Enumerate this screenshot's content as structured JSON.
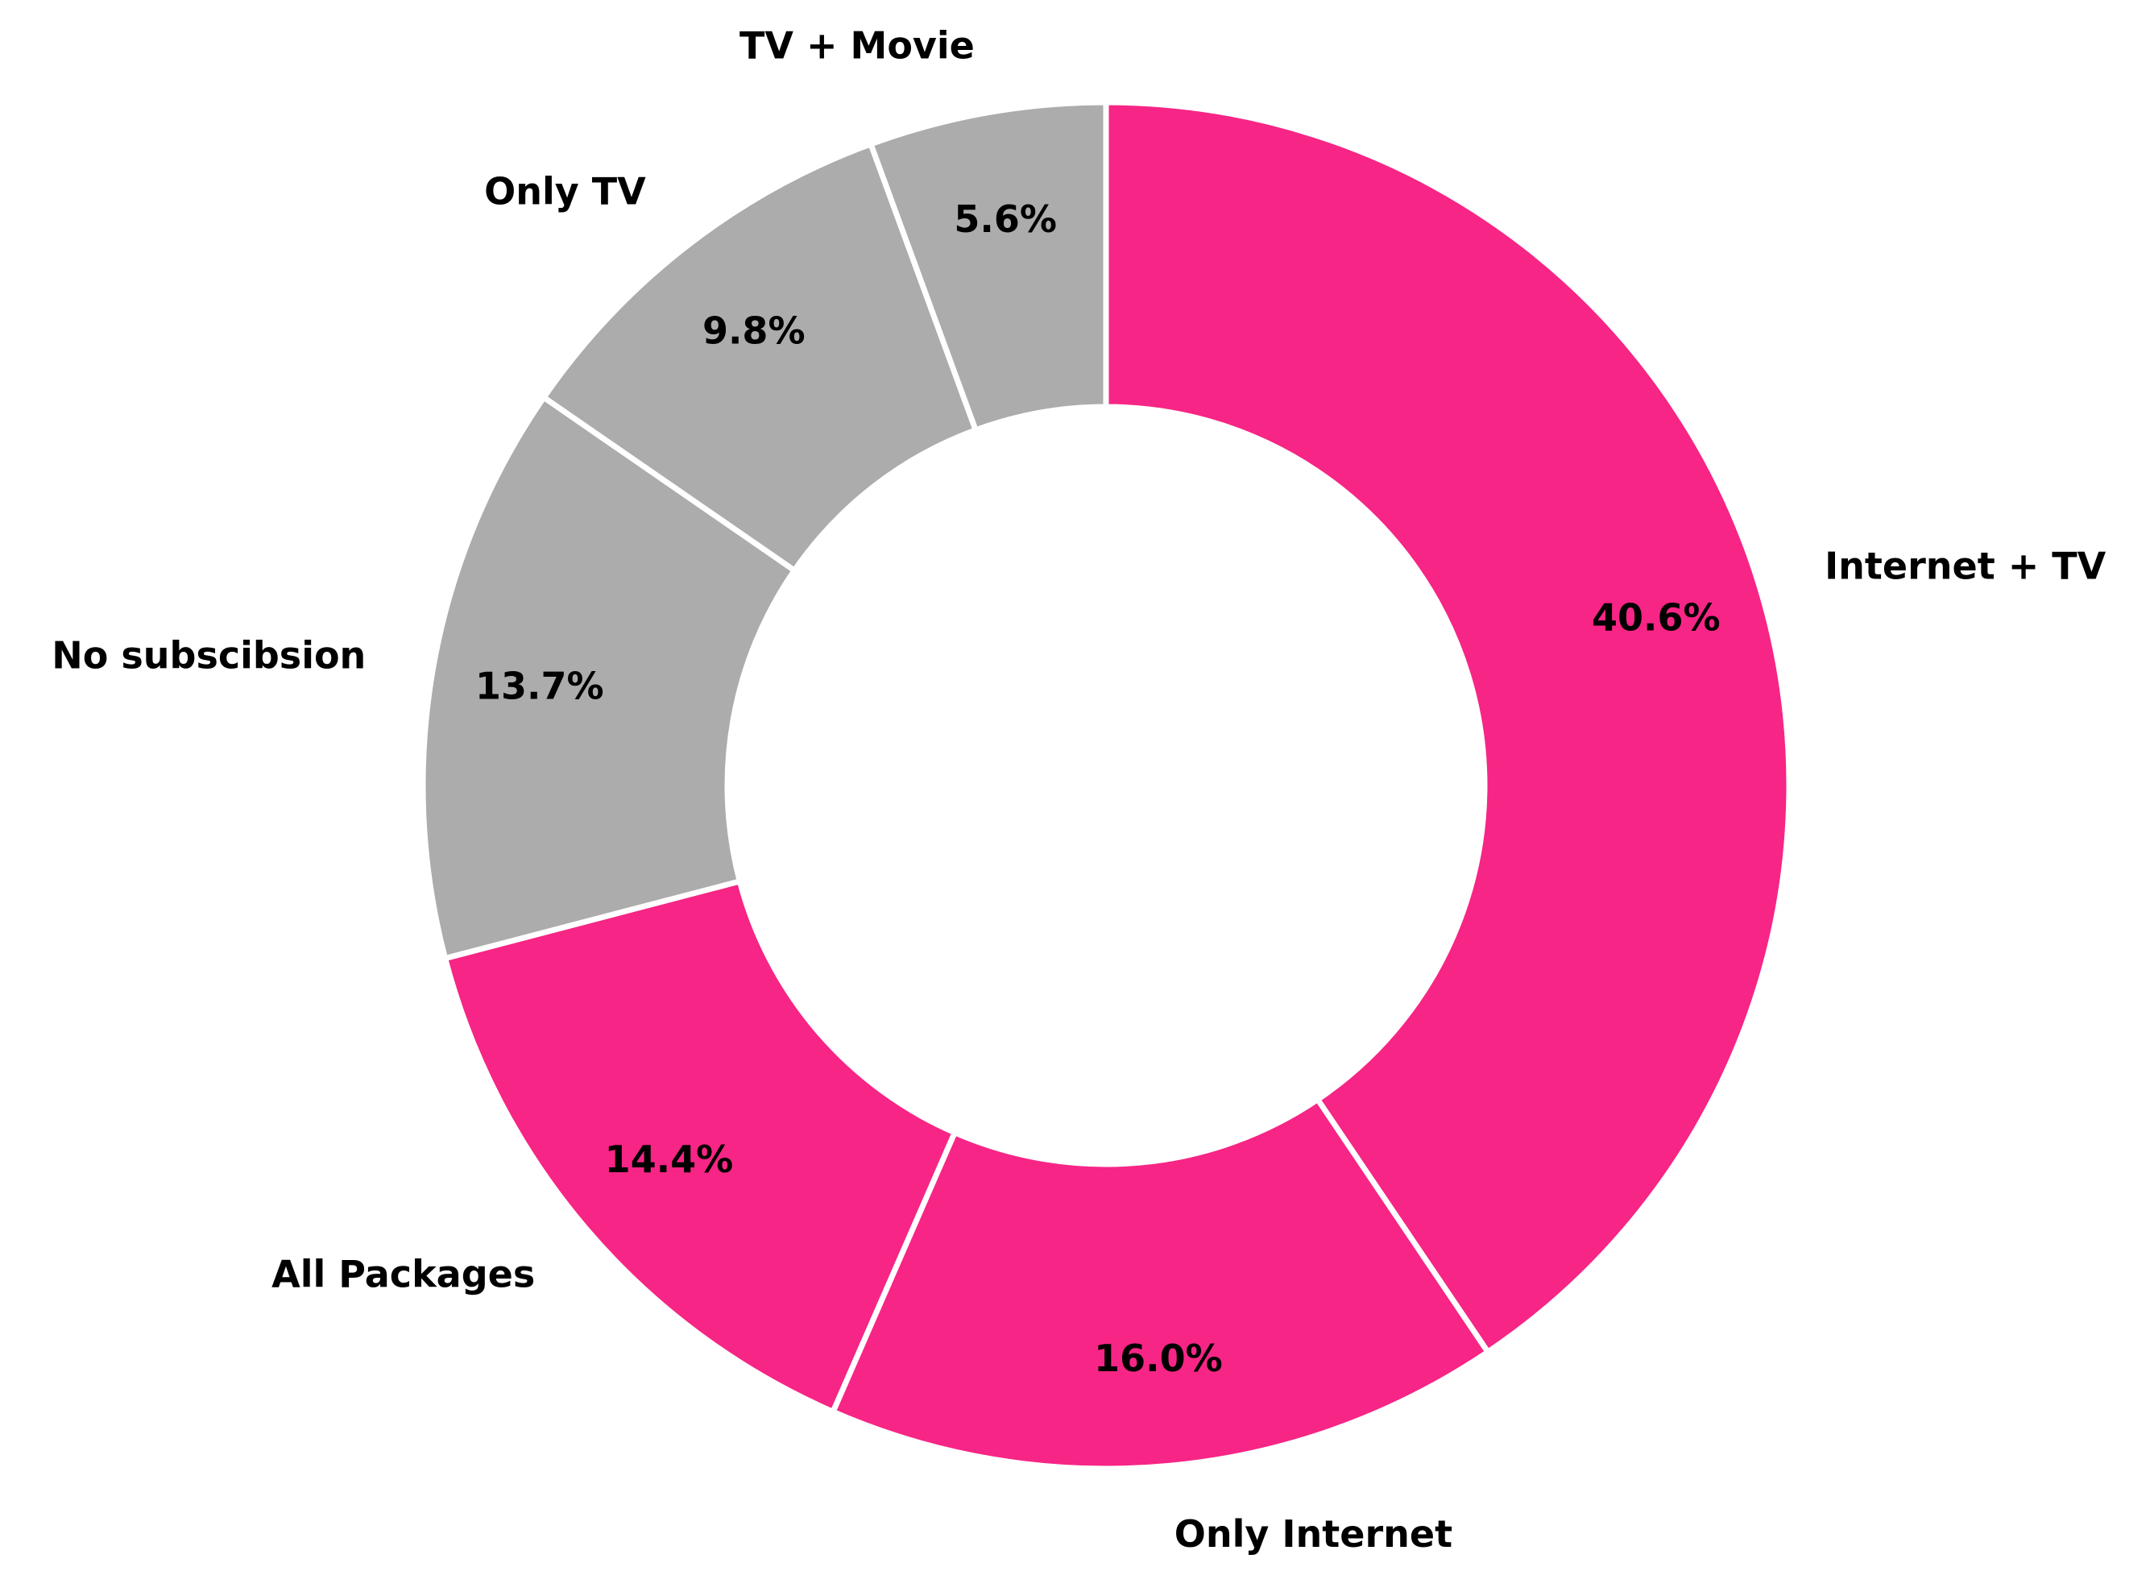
{
  "chart_data": {
    "type": "pie",
    "variant": "donut",
    "start_angle_deg": 90,
    "direction": "clockwise",
    "categories": [
      "Internet + TV",
      "Only Internet",
      "All Packages",
      "No subscibsion",
      "Only TV",
      "TV + Movie"
    ],
    "values": [
      40.6,
      16.0,
      14.4,
      13.7,
      9.8,
      5.6
    ],
    "value_labels": [
      "40.6%",
      "16.0%",
      "14.4%",
      "13.7%",
      "9.8%",
      "5.6%"
    ],
    "colors": [
      "#f72585",
      "#f72585",
      "#f72585",
      "#acacac",
      "#acacac",
      "#acacac"
    ],
    "edge_color": "#ffffff",
    "legend": "none"
  }
}
